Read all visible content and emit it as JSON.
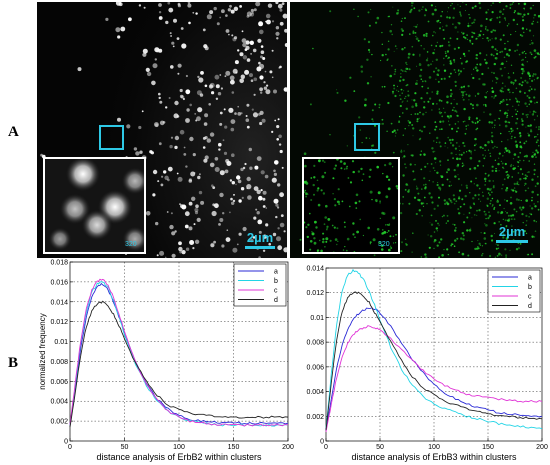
{
  "figure": {
    "panel_a_label": "A",
    "panel_b_label": "B",
    "images": {
      "left_scalebar": "2µm",
      "right_scalebar": "2µm",
      "left_inset_scale": "320",
      "right_inset_scale": "320",
      "left_color": "#ffffff",
      "right_color": "#22c42a",
      "roi_box_color": "#2ec9e6"
    }
  },
  "chart_data": [
    {
      "type": "line",
      "xlabel": "distance analysis of ErbB2 within clusters",
      "ylabel": "normalized frequency",
      "xlim": [
        0,
        200
      ],
      "ylim": [
        0,
        0.018
      ],
      "xticks": [
        0,
        50,
        100,
        150,
        200
      ],
      "yticks": [
        0,
        0.002,
        0.004,
        0.006,
        0.008,
        0.01,
        0.012,
        0.014,
        0.016,
        0.018
      ],
      "ytick_labels": [
        "0",
        "0.002",
        "0.004",
        "0.006",
        "0.008",
        "0.01",
        "0.012",
        "0.014",
        "0.016",
        "0.018"
      ],
      "grid": true,
      "legend_position": "top-right",
      "x": [
        0,
        5,
        10,
        15,
        20,
        25,
        30,
        35,
        40,
        45,
        50,
        60,
        70,
        80,
        90,
        100,
        110,
        120,
        130,
        140,
        150,
        160,
        170,
        180,
        190,
        200
      ],
      "series": [
        {
          "name": "a",
          "color": "#2a2ad6",
          "values": [
            0.0015,
            0.0055,
            0.0095,
            0.0125,
            0.0145,
            0.0155,
            0.0158,
            0.0152,
            0.014,
            0.0125,
            0.0108,
            0.008,
            0.0058,
            0.0042,
            0.0032,
            0.0026,
            0.0022,
            0.002,
            0.0019,
            0.0018,
            0.0018,
            0.0018,
            0.0018,
            0.0018,
            0.0018,
            0.0018
          ]
        },
        {
          "name": "b",
          "color": "#22d4e6",
          "values": [
            0.0015,
            0.0057,
            0.01,
            0.013,
            0.015,
            0.0158,
            0.016,
            0.0154,
            0.0141,
            0.0125,
            0.0107,
            0.0078,
            0.0056,
            0.004,
            0.003,
            0.0024,
            0.002,
            0.0018,
            0.0017,
            0.0016,
            0.0016,
            0.0016,
            0.0016,
            0.0016,
            0.0016,
            0.0016
          ]
        },
        {
          "name": "c",
          "color": "#e033d6",
          "values": [
            0.0016,
            0.006,
            0.0102,
            0.0133,
            0.0152,
            0.0161,
            0.0163,
            0.0157,
            0.0144,
            0.0128,
            0.011,
            0.008,
            0.0057,
            0.0041,
            0.003,
            0.0024,
            0.002,
            0.0018,
            0.0017,
            0.0016,
            0.0016,
            0.0016,
            0.0016,
            0.0016,
            0.0016,
            0.0016
          ]
        },
        {
          "name": "d",
          "color": "#222222",
          "values": [
            0.0014,
            0.005,
            0.0088,
            0.0115,
            0.0131,
            0.0138,
            0.014,
            0.0136,
            0.0127,
            0.0116,
            0.0102,
            0.0078,
            0.006,
            0.0046,
            0.0036,
            0.0031,
            0.0028,
            0.0026,
            0.0025,
            0.0024,
            0.0024,
            0.0024,
            0.0024,
            0.0024,
            0.0024,
            0.0024
          ]
        }
      ]
    },
    {
      "type": "line",
      "xlabel": "distance analysis of ErbB3 within clusters",
      "ylabel": "",
      "xlim": [
        0,
        200
      ],
      "ylim": [
        0,
        0.014
      ],
      "xticks": [
        0,
        50,
        100,
        150,
        200
      ],
      "yticks": [
        0,
        0.002,
        0.004,
        0.006,
        0.008,
        0.01,
        0.012,
        0.014
      ],
      "ytick_labels": [
        "0",
        "0.002",
        "0.004",
        "0.006",
        "0.008",
        "0.01",
        "0.012",
        "0.014"
      ],
      "grid": true,
      "legend_position": "top-right",
      "x": [
        0,
        5,
        10,
        15,
        20,
        25,
        30,
        35,
        40,
        45,
        50,
        60,
        70,
        80,
        90,
        100,
        110,
        120,
        130,
        140,
        150,
        160,
        170,
        180,
        190,
        200
      ],
      "series": [
        {
          "name": "a",
          "color": "#2a2ad6",
          "values": [
            0.0008,
            0.0035,
            0.006,
            0.0078,
            0.009,
            0.0098,
            0.0103,
            0.0106,
            0.0108,
            0.0107,
            0.0104,
            0.0093,
            0.0079,
            0.0066,
            0.0055,
            0.0046,
            0.0039,
            0.0034,
            0.003,
            0.0027,
            0.0025,
            0.0023,
            0.0022,
            0.0021,
            0.002,
            0.002
          ]
        },
        {
          "name": "b",
          "color": "#22d4e6",
          "values": [
            0.001,
            0.0055,
            0.0095,
            0.0122,
            0.0134,
            0.0138,
            0.0136,
            0.013,
            0.0121,
            0.011,
            0.0098,
            0.0076,
            0.0058,
            0.0045,
            0.0036,
            0.003,
            0.0026,
            0.0023,
            0.002,
            0.0018,
            0.0016,
            0.0014,
            0.0013,
            0.0012,
            0.0011,
            0.001
          ]
        },
        {
          "name": "c",
          "color": "#e033d6",
          "values": [
            0.0007,
            0.003,
            0.0052,
            0.0068,
            0.0079,
            0.0086,
            0.009,
            0.0092,
            0.0093,
            0.0092,
            0.009,
            0.0083,
            0.0074,
            0.0065,
            0.0057,
            0.005,
            0.0045,
            0.0041,
            0.0038,
            0.0036,
            0.0035,
            0.0034,
            0.0033,
            0.0032,
            0.0032,
            0.0032
          ]
        },
        {
          "name": "d",
          "color": "#222222",
          "values": [
            0.0009,
            0.0048,
            0.0083,
            0.0105,
            0.0116,
            0.012,
            0.012,
            0.0117,
            0.0112,
            0.0104,
            0.0096,
            0.008,
            0.0065,
            0.0052,
            0.0043,
            0.0037,
            0.0032,
            0.0029,
            0.0026,
            0.0024,
            0.0022,
            0.0021,
            0.002,
            0.0019,
            0.0018,
            0.0018
          ]
        }
      ]
    }
  ]
}
